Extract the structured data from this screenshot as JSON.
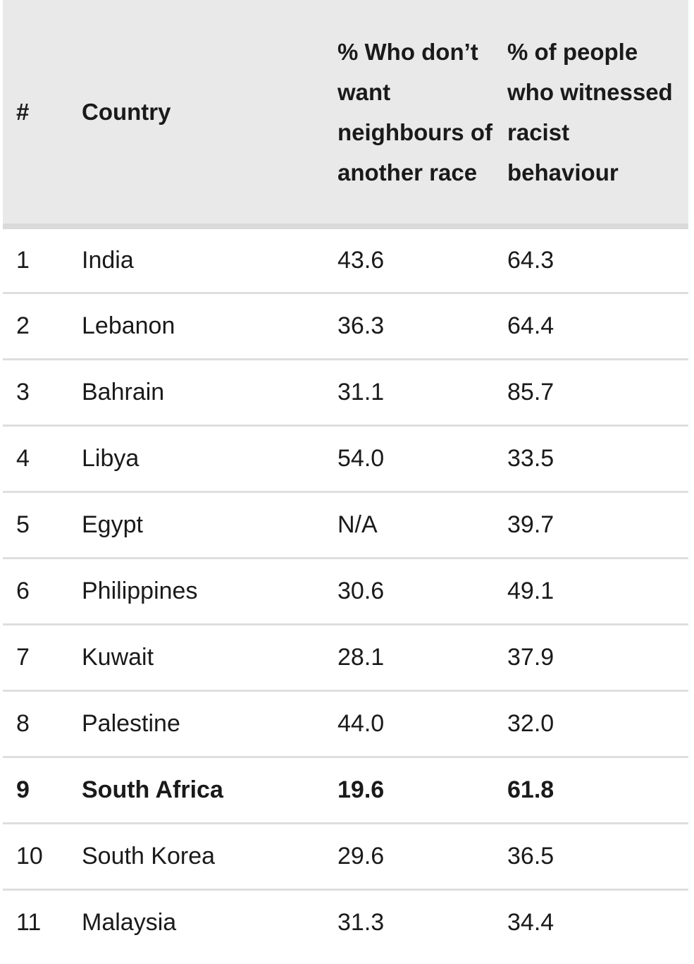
{
  "table": {
    "headers": {
      "rank": "#",
      "country": "Country",
      "neighbours": "% Who don’t want neighbours of another race",
      "witnessed": "% of people who witnessed racist behaviour"
    },
    "rows": [
      {
        "rank": "1",
        "country": "India",
        "neighbours": "43.6",
        "witnessed": "64.3"
      },
      {
        "rank": "2",
        "country": "Lebanon",
        "neighbours": "36.3",
        "witnessed": "64.4"
      },
      {
        "rank": "3",
        "country": "Bahrain",
        "neighbours": "31.1",
        "witnessed": "85.7"
      },
      {
        "rank": "4",
        "country": "Libya",
        "neighbours": "54.0",
        "witnessed": "33.5"
      },
      {
        "rank": "5",
        "country": "Egypt",
        "neighbours": "N/A",
        "witnessed": "39.7"
      },
      {
        "rank": "6",
        "country": "Philippines",
        "neighbours": "30.6",
        "witnessed": "49.1"
      },
      {
        "rank": "7",
        "country": "Kuwait",
        "neighbours": "28.1",
        "witnessed": "37.9"
      },
      {
        "rank": "8",
        "country": "Palestine",
        "neighbours": "44.0",
        "witnessed": "32.0"
      },
      {
        "rank": "9",
        "country": "South Africa",
        "neighbours": "19.6",
        "witnessed": "61.8",
        "highlight": true
      },
      {
        "rank": "10",
        "country": "South Korea",
        "neighbours": "29.6",
        "witnessed": "36.5"
      },
      {
        "rank": "11",
        "country": "Malaysia",
        "neighbours": "31.3",
        "witnessed": "34.4"
      }
    ]
  },
  "colors": {
    "header_bg": "#e9e9e9",
    "row_divider": "#dedede",
    "text": "#1a1a1a"
  }
}
